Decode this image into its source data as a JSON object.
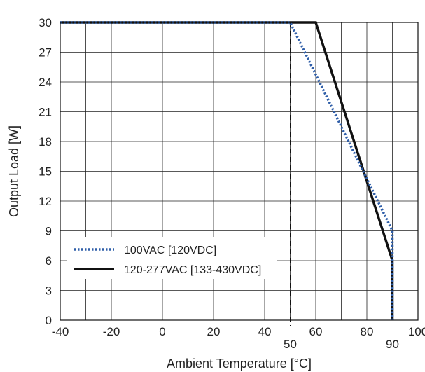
{
  "chart_data": {
    "type": "line",
    "title": "",
    "xlabel": "Ambient Temperature [°C]",
    "ylabel": "Output Load [W]",
    "xlim": [
      -40,
      100
    ],
    "ylim": [
      0,
      30
    ],
    "x_ticks": [
      -40,
      -20,
      0,
      20,
      40,
      60,
      80,
      100
    ],
    "x_ticks_extra": [
      50,
      90
    ],
    "y_ticks": [
      0,
      3,
      6,
      9,
      12,
      15,
      18,
      21,
      24,
      27,
      30
    ],
    "grid": true,
    "reference_line_x": 50,
    "legend_position": "lower-left",
    "series": [
      {
        "name": "100VAC [120VDC]",
        "style": "dotted",
        "color": "#2f5ea8",
        "points": [
          [
            -40,
            30
          ],
          [
            50,
            30
          ],
          [
            90,
            9
          ],
          [
            90,
            0
          ]
        ]
      },
      {
        "name": "120-277VAC [133-430VDC]",
        "style": "solid",
        "color": "#111111",
        "points": [
          [
            -40,
            30
          ],
          [
            60,
            30
          ],
          [
            90,
            6
          ],
          [
            90,
            0
          ]
        ]
      }
    ]
  }
}
